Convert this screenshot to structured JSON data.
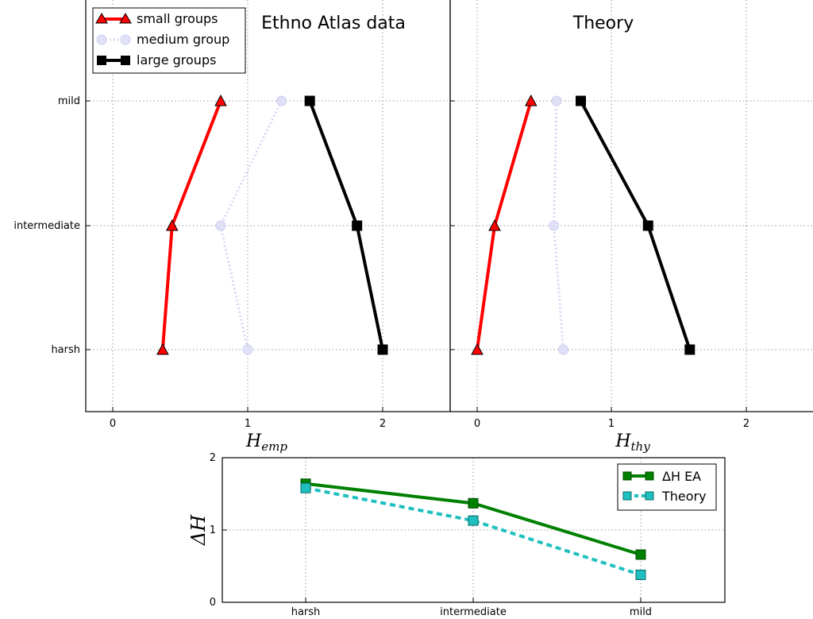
{
  "chart_data": [
    {
      "type": "line",
      "panel": "left",
      "title": "Ethno Atlas data",
      "xlabel": "H_emp",
      "categories": [
        "mild",
        "intermediate",
        "harsh"
      ],
      "xlim": [
        -0.2,
        2.5
      ],
      "xticks": [
        "0",
        "1",
        "2"
      ],
      "grid": true,
      "legend_position": "upper-left",
      "series": [
        {
          "name": "small groups",
          "color": "#ff0000",
          "marker": "triangle",
          "style": "solid",
          "values": [
            0.8,
            0.44,
            0.37
          ]
        },
        {
          "name": "medium group",
          "color": "#d7d7f5",
          "marker": "circle",
          "style": "dotted",
          "values": [
            1.25,
            0.8,
            1.0
          ]
        },
        {
          "name": "large groups",
          "color": "#000000",
          "marker": "square",
          "style": "solid",
          "values": [
            1.46,
            1.81,
            2.0
          ]
        }
      ]
    },
    {
      "type": "line",
      "panel": "right",
      "title": "Theory",
      "xlabel": "H_thy",
      "categories": [
        "mild",
        "intermediate",
        "harsh"
      ],
      "xlim": [
        -0.2,
        2.5
      ],
      "xticks": [
        "0",
        "1",
        "2"
      ],
      "grid": true,
      "series": [
        {
          "name": "small groups",
          "color": "#ff0000",
          "marker": "triangle",
          "style": "solid",
          "values": [
            0.4,
            0.13,
            0.0
          ]
        },
        {
          "name": "medium group",
          "color": "#d7d7f5",
          "marker": "circle",
          "style": "dotted",
          "values": [
            0.59,
            0.57,
            0.64
          ]
        },
        {
          "name": "large groups",
          "color": "#000000",
          "marker": "square",
          "style": "solid",
          "values": [
            0.77,
            1.27,
            1.58
          ]
        }
      ]
    },
    {
      "type": "line",
      "panel": "bottom",
      "ylabel": "ΔH",
      "categories": [
        "harsh",
        "intermediate",
        "mild"
      ],
      "ylim": [
        0,
        2
      ],
      "yticks": [
        "0",
        "1",
        "2"
      ],
      "grid": true,
      "legend_position": "upper-right",
      "series": [
        {
          "name": "ΔH EA",
          "color": "#008000",
          "marker": "square",
          "style": "solid",
          "values": [
            1.64,
            1.37,
            0.66
          ]
        },
        {
          "name": "Theory",
          "color": "#1fbfbf",
          "marker": "square",
          "style": "dashed",
          "values": [
            1.58,
            1.13,
            0.38
          ]
        }
      ]
    }
  ]
}
